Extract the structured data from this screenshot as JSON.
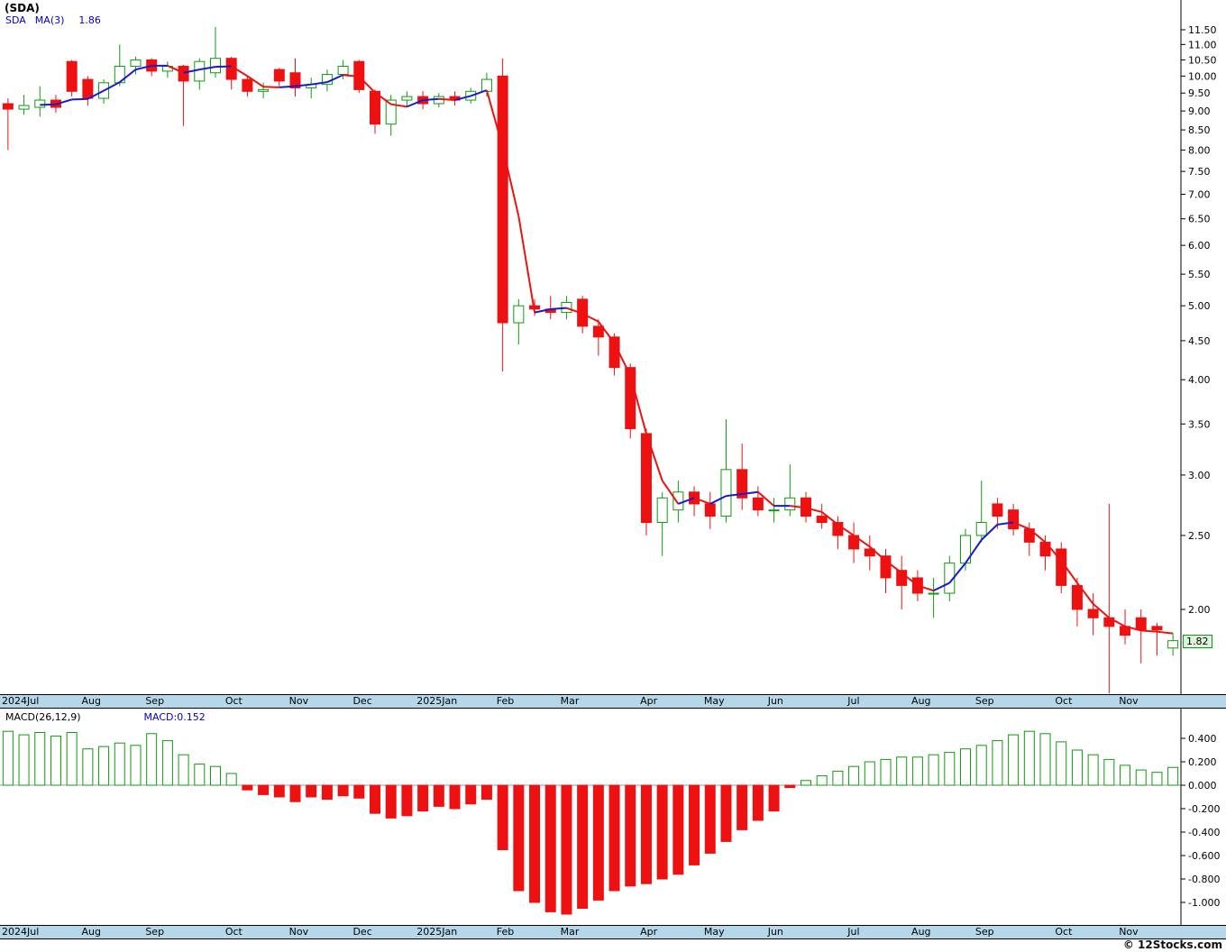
{
  "window": {
    "title": "(SDA)"
  },
  "legend": {
    "symbol": "SDA",
    "ma": "MA(3)",
    "ma_value": "1.86"
  },
  "price_axis": {
    "last_price_label": "1.82"
  },
  "macd": {
    "label": "MACD(26,12,9)",
    "value": "MACD:0.152"
  },
  "watermark": "© 12Stocks.com",
  "colors": {
    "up": "#0f9b0f",
    "down": "#ee1111",
    "ma_rising": "#1a1acc",
    "ma_falling": "#ee1111",
    "axis_bar_bg": "#b4d8ea",
    "zero_line": "#999999"
  },
  "chart_data": [
    {
      "type": "candlestick",
      "name": "SDA weekly price with MA(3)",
      "scale": "log",
      "ylim": [
        1.5,
        11.8
      ],
      "y_ticks": [
        11.5,
        11.0,
        10.5,
        10.0,
        9.5,
        9.0,
        8.5,
        8.0,
        7.5,
        7.0,
        6.5,
        6.0,
        5.5,
        5.0,
        4.5,
        4.0,
        3.5,
        3.0,
        2.5,
        2.0
      ],
      "ma_period": 3,
      "ma_last": 1.86,
      "last_close": 1.82,
      "months": [
        {
          "label": "2024Jul",
          "index": 0
        },
        {
          "label": "Aug",
          "index": 5
        },
        {
          "label": "Sep",
          "index": 9
        },
        {
          "label": "Oct",
          "index": 14
        },
        {
          "label": "Nov",
          "index": 18
        },
        {
          "label": "Dec",
          "index": 22
        },
        {
          "label": "2025Jan",
          "index": 26
        },
        {
          "label": "Feb",
          "index": 31
        },
        {
          "label": "Mar",
          "index": 35
        },
        {
          "label": "Apr",
          "index": 40
        },
        {
          "label": "May",
          "index": 44
        },
        {
          "label": "Jun",
          "index": 48
        },
        {
          "label": "Jul",
          "index": 53
        },
        {
          "label": "Aug",
          "index": 57
        },
        {
          "label": "Sep",
          "index": 61
        },
        {
          "label": "Oct",
          "index": 66
        },
        {
          "label": "Nov",
          "index": 70
        }
      ],
      "ohlc": [
        [
          9.2,
          9.35,
          8.0,
          9.05
        ],
        [
          9.05,
          9.45,
          8.9,
          9.15
        ],
        [
          9.1,
          9.7,
          8.85,
          9.3
        ],
        [
          9.3,
          9.45,
          8.95,
          9.1
        ],
        [
          10.45,
          10.5,
          9.4,
          9.55
        ],
        [
          9.9,
          10.0,
          9.15,
          9.35
        ],
        [
          9.35,
          9.9,
          9.2,
          9.8
        ],
        [
          9.8,
          11.0,
          9.7,
          10.3
        ],
        [
          10.3,
          10.6,
          10.05,
          10.5
        ],
        [
          10.5,
          10.55,
          10.0,
          10.15
        ],
        [
          10.15,
          10.45,
          9.95,
          10.3
        ],
        [
          10.3,
          10.35,
          8.6,
          9.85
        ],
        [
          9.85,
          10.55,
          9.6,
          10.45
        ],
        [
          10.1,
          11.6,
          9.95,
          10.55
        ],
        [
          10.55,
          10.6,
          9.6,
          9.9
        ],
        [
          9.9,
          10.0,
          9.4,
          9.55
        ],
        [
          9.55,
          9.8,
          9.35,
          9.6
        ],
        [
          10.2,
          10.25,
          9.7,
          9.85
        ],
        [
          10.1,
          10.55,
          9.4,
          9.65
        ],
        [
          9.65,
          9.95,
          9.35,
          9.75
        ],
        [
          9.75,
          10.2,
          9.55,
          10.05
        ],
        [
          10.05,
          10.5,
          9.9,
          10.3
        ],
        [
          10.45,
          10.5,
          9.5,
          9.6
        ],
        [
          9.55,
          9.6,
          8.4,
          8.65
        ],
        [
          8.65,
          9.45,
          8.35,
          9.3
        ],
        [
          9.3,
          9.55,
          9.1,
          9.4
        ],
        [
          9.4,
          9.55,
          9.05,
          9.2
        ],
        [
          9.2,
          9.5,
          9.1,
          9.4
        ],
        [
          9.4,
          9.55,
          9.15,
          9.3
        ],
        [
          9.3,
          9.65,
          9.2,
          9.55
        ],
        [
          9.55,
          10.1,
          9.4,
          9.9
        ],
        [
          10.0,
          10.55,
          4.1,
          4.75
        ],
        [
          4.75,
          5.1,
          4.45,
          5.0
        ],
        [
          5.0,
          5.1,
          4.85,
          4.95
        ],
        [
          4.95,
          5.15,
          4.8,
          4.9
        ],
        [
          4.9,
          5.15,
          4.8,
          5.05
        ],
        [
          5.1,
          5.15,
          4.6,
          4.7
        ],
        [
          4.7,
          4.8,
          4.3,
          4.55
        ],
        [
          4.55,
          4.6,
          4.05,
          4.15
        ],
        [
          4.15,
          4.2,
          3.35,
          3.45
        ],
        [
          3.4,
          3.45,
          2.5,
          2.6
        ],
        [
          2.6,
          2.85,
          2.35,
          2.8
        ],
        [
          2.7,
          2.95,
          2.6,
          2.85
        ],
        [
          2.85,
          2.9,
          2.65,
          2.75
        ],
        [
          2.75,
          2.85,
          2.55,
          2.65
        ],
        [
          2.65,
          3.55,
          2.6,
          3.05
        ],
        [
          3.05,
          3.3,
          2.7,
          2.8
        ],
        [
          2.8,
          2.9,
          2.65,
          2.7
        ],
        [
          2.7,
          2.8,
          2.6,
          2.7
        ],
        [
          2.7,
          3.1,
          2.65,
          2.8
        ],
        [
          2.8,
          2.85,
          2.6,
          2.65
        ],
        [
          2.65,
          2.75,
          2.55,
          2.6
        ],
        [
          2.6,
          2.65,
          2.4,
          2.5
        ],
        [
          2.5,
          2.6,
          2.3,
          2.4
        ],
        [
          2.4,
          2.5,
          2.25,
          2.35
        ],
        [
          2.35,
          2.4,
          2.1,
          2.2
        ],
        [
          2.25,
          2.35,
          2.0,
          2.15
        ],
        [
          2.2,
          2.25,
          2.05,
          2.1
        ],
        [
          2.1,
          2.2,
          1.95,
          2.1
        ],
        [
          2.1,
          2.35,
          2.05,
          2.3
        ],
        [
          2.3,
          2.55,
          2.25,
          2.5
        ],
        [
          2.5,
          2.95,
          2.45,
          2.6
        ],
        [
          2.75,
          2.8,
          2.55,
          2.65
        ],
        [
          2.7,
          2.75,
          2.5,
          2.55
        ],
        [
          2.55,
          2.6,
          2.35,
          2.45
        ],
        [
          2.45,
          2.5,
          2.25,
          2.35
        ],
        [
          2.4,
          2.45,
          2.1,
          2.15
        ],
        [
          2.15,
          2.2,
          1.9,
          2.0
        ],
        [
          2.0,
          2.1,
          1.85,
          1.95
        ],
        [
          1.95,
          2.75,
          1.55,
          1.9
        ],
        [
          1.9,
          2.0,
          1.8,
          1.85
        ],
        [
          1.95,
          2.0,
          1.7,
          1.88
        ],
        [
          1.9,
          1.92,
          1.74,
          1.88
        ],
        [
          1.78,
          1.86,
          1.74,
          1.82
        ]
      ]
    },
    {
      "type": "bar",
      "name": "MACD(26,12,9) histogram",
      "ylim": [
        -1.15,
        0.55
      ],
      "y_ticks": [
        0.4,
        0.2,
        0.0,
        -0.2,
        -0.4,
        -0.6,
        -0.8,
        -1.0
      ],
      "last_value": 0.152,
      "values": [
        0.46,
        0.43,
        0.45,
        0.42,
        0.45,
        0.31,
        0.33,
        0.36,
        0.34,
        0.44,
        0.38,
        0.26,
        0.18,
        0.16,
        0.1,
        -0.04,
        -0.08,
        -0.1,
        -0.14,
        -0.1,
        -0.12,
        -0.09,
        -0.11,
        -0.24,
        -0.28,
        -0.26,
        -0.22,
        -0.18,
        -0.2,
        -0.16,
        -0.12,
        -0.55,
        -0.9,
        -1.0,
        -1.08,
        -1.1,
        -1.05,
        -0.98,
        -0.9,
        -0.86,
        -0.84,
        -0.8,
        -0.76,
        -0.68,
        -0.58,
        -0.48,
        -0.38,
        -0.3,
        -0.22,
        -0.02,
        0.04,
        0.08,
        0.12,
        0.16,
        0.2,
        0.22,
        0.24,
        0.24,
        0.26,
        0.28,
        0.31,
        0.34,
        0.38,
        0.43,
        0.46,
        0.44,
        0.37,
        0.3,
        0.26,
        0.22,
        0.17,
        0.13,
        0.11,
        0.152
      ]
    }
  ]
}
